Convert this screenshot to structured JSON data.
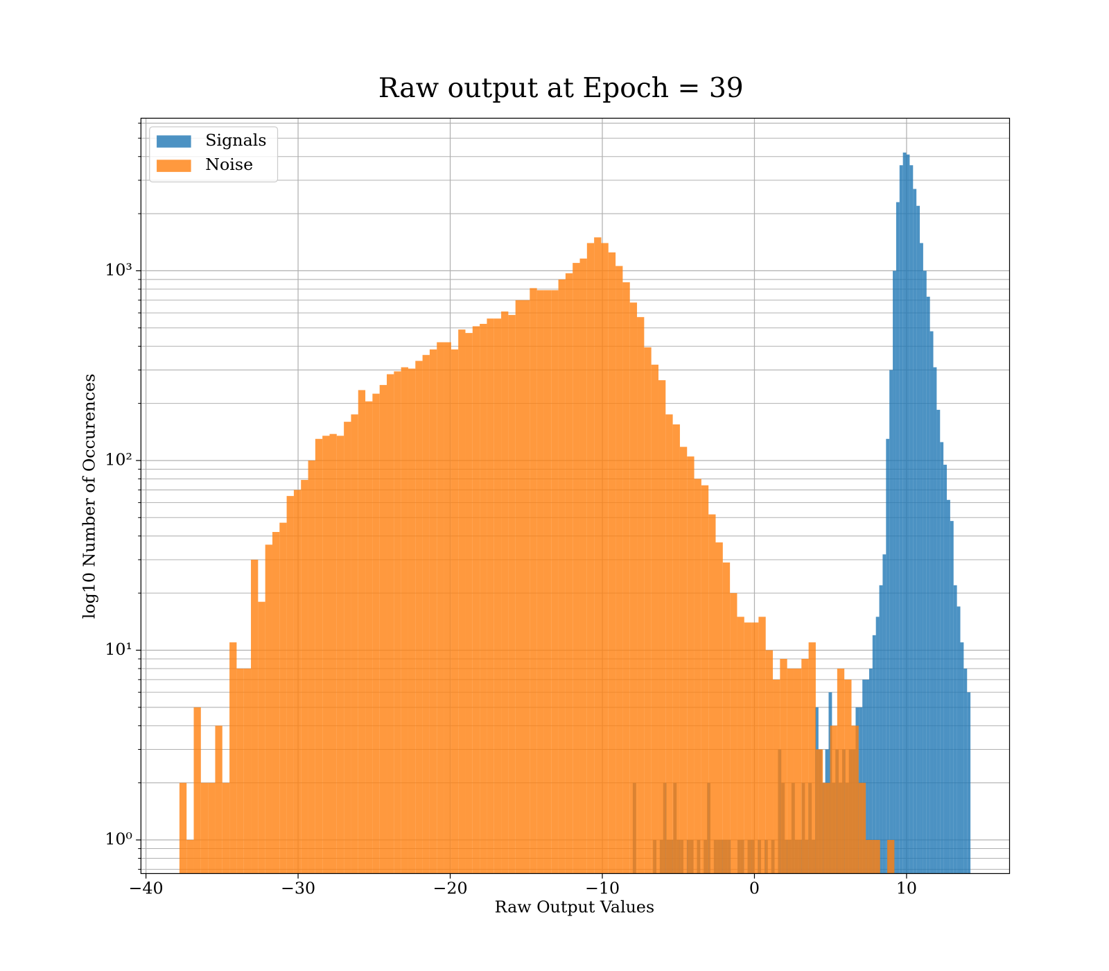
{
  "chart_data": {
    "type": "histogram",
    "title": "Raw output at Epoch = 39",
    "xlabel": "Raw Output Values",
    "ylabel": "log10 Number of Occurences",
    "log_y": true,
    "grid": true,
    "minor_grid": true,
    "legend": "upper left",
    "alpha": 0.8,
    "xlim": [
      -40.33,
      16.77
    ],
    "ylim": [
      0.665,
      6370
    ],
    "xticks": [
      {
        "value": -40,
        "label": "−40"
      },
      {
        "value": -30,
        "label": "−30"
      },
      {
        "value": -20,
        "label": "−20"
      },
      {
        "value": -10,
        "label": "−10"
      },
      0,
      10
    ],
    "yticks": [
      {
        "value": 1,
        "label": "10⁰"
      },
      {
        "value": 10,
        "label": "10¹"
      },
      {
        "value": 100,
        "label": "10²"
      },
      {
        "value": 1000,
        "label": "10³"
      }
    ],
    "series": [
      {
        "name": "Signals",
        "color": "#1f77b4",
        "bins": [
          -8.0,
          -7.778,
          -7.556,
          -7.334,
          -7.112,
          -6.89,
          -6.668,
          -6.446,
          -6.224,
          -6.002,
          -5.78,
          -5.558,
          -5.336,
          -5.114,
          -4.892,
          -4.67,
          -4.448,
          -4.226,
          -4.004,
          -3.782,
          -3.56,
          -3.338,
          -3.116,
          -2.894,
          -2.672,
          -2.45,
          -2.228,
          -2.006,
          -1.784,
          -1.562,
          -1.34,
          -1.118,
          -0.896,
          -0.674,
          -0.452,
          -0.23,
          -0.008,
          0.214,
          0.436,
          0.658,
          0.88,
          1.102,
          1.324,
          1.546,
          1.768,
          1.99,
          2.212,
          2.434,
          2.656,
          2.878,
          3.1,
          3.322,
          3.544,
          3.766,
          3.988,
          4.21,
          4.432,
          4.654,
          4.876,
          5.098,
          5.32,
          5.542,
          5.764,
          5.986,
          6.208,
          6.43,
          6.652,
          6.874,
          7.096,
          7.318,
          7.54,
          7.762,
          7.984,
          8.206,
          8.428,
          8.65,
          8.872,
          9.094,
          9.316,
          9.538,
          9.76,
          9.982,
          10.204,
          10.426,
          10.648,
          10.87,
          11.092,
          11.314,
          11.536,
          11.758,
          11.98,
          12.202,
          12.424,
          12.646,
          12.868,
          13.09,
          13.312,
          13.534,
          13.756,
          13.978,
          14.2
        ],
        "values": [
          2,
          0,
          0,
          0,
          0,
          0,
          1,
          0,
          1,
          2,
          1,
          1,
          2,
          1,
          1,
          0,
          1,
          1,
          0,
          1,
          0,
          1,
          2,
          0,
          1,
          1,
          1,
          1,
          1,
          0,
          0,
          1,
          1,
          0,
          1,
          1,
          0,
          1,
          0,
          1,
          0,
          1,
          0,
          3,
          2,
          1,
          1,
          2,
          1,
          1,
          2,
          1,
          2,
          1,
          5,
          3,
          2,
          3,
          6,
          2,
          3,
          2,
          3,
          2,
          3,
          3,
          5,
          5,
          7,
          7,
          8,
          12,
          15,
          22,
          32,
          130,
          300,
          1000,
          2300,
          3600,
          4200,
          4100,
          3600,
          2700,
          2200,
          1400,
          1000,
          730,
          480,
          310,
          185,
          125,
          95,
          62,
          48,
          22,
          17,
          11,
          8,
          6
        ]
      },
      {
        "name": "Noise",
        "color": "#ff7f0e",
        "bins": [
          -37.8,
          -37.33,
          -36.86,
          -36.39,
          -35.92,
          -35.45,
          -34.98,
          -34.51,
          -34.04,
          -33.57,
          -33.1,
          -32.63,
          -32.16,
          -31.69,
          -31.22,
          -30.75,
          -30.28,
          -29.81,
          -29.34,
          -28.87,
          -28.4,
          -27.93,
          -27.46,
          -26.99,
          -26.52,
          -26.05,
          -25.58,
          -25.11,
          -24.64,
          -24.17,
          -23.7,
          -23.23,
          -22.76,
          -22.29,
          -21.82,
          -21.35,
          -20.88,
          -20.41,
          -19.94,
          -19.47,
          -19.0,
          -18.53,
          -18.06,
          -17.59,
          -17.12,
          -16.65,
          -16.18,
          -15.71,
          -15.24,
          -14.77,
          -14.3,
          -13.83,
          -13.36,
          -12.89,
          -12.42,
          -11.95,
          -11.48,
          -11.01,
          -10.54,
          -10.07,
          -9.6,
          -9.13,
          -8.66,
          -8.19,
          -7.72,
          -7.25,
          -6.78,
          -6.31,
          -5.84,
          -5.37,
          -4.9,
          -4.43,
          -3.96,
          -3.49,
          -3.02,
          -2.55,
          -2.08,
          -1.61,
          -1.14,
          -0.67,
          -0.2,
          0.27,
          0.74,
          1.21,
          1.68,
          2.15,
          2.62,
          3.09,
          3.56,
          4.03,
          4.5,
          4.97,
          5.44,
          5.91,
          6.38,
          6.85,
          7.32,
          7.79,
          8.26,
          8.73,
          9.2
        ],
        "values": [
          2,
          1,
          5,
          2,
          2,
          4,
          2,
          11,
          8,
          8,
          30,
          18,
          36,
          42,
          47,
          65,
          70,
          79,
          100,
          130,
          135,
          138,
          135,
          160,
          175,
          235,
          205,
          225,
          250,
          285,
          295,
          310,
          305,
          335,
          360,
          385,
          420,
          420,
          385,
          490,
          470,
          510,
          525,
          560,
          560,
          610,
          585,
          700,
          700,
          810,
          790,
          790,
          790,
          900,
          970,
          1100,
          1160,
          1400,
          1500,
          1400,
          1250,
          1060,
          870,
          680,
          570,
          395,
          320,
          265,
          175,
          155,
          118,
          105,
          80,
          74,
          52,
          37,
          29,
          20,
          15,
          14,
          14,
          15,
          10,
          7,
          9,
          8,
          8,
          9,
          11,
          3,
          2,
          4,
          8,
          7,
          4,
          2,
          1,
          1,
          0,
          1
        ]
      }
    ]
  }
}
